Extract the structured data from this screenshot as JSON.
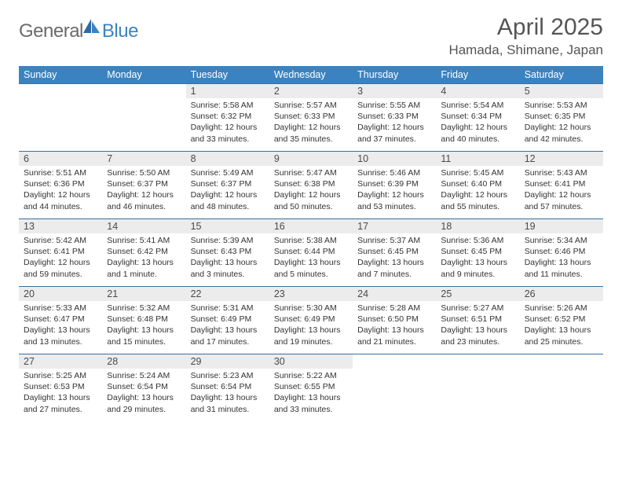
{
  "logo": {
    "word1": "General",
    "word2": "Blue"
  },
  "title": "April 2025",
  "location": "Hamada, Shimane, Japan",
  "colors": {
    "header_bg": "#3b83c0",
    "header_text": "#ffffff",
    "daynum_bg": "#ececec",
    "row_border": "#3b6f9e",
    "logo_gray": "#6a6a6a",
    "logo_blue": "#3b83c0"
  },
  "weekdays": [
    "Sunday",
    "Monday",
    "Tuesday",
    "Wednesday",
    "Thursday",
    "Friday",
    "Saturday"
  ],
  "weeks": [
    [
      {
        "n": "",
        "sr": "",
        "ss": "",
        "dl1": "",
        "dl2": ""
      },
      {
        "n": "",
        "sr": "",
        "ss": "",
        "dl1": "",
        "dl2": ""
      },
      {
        "n": "1",
        "sr": "Sunrise: 5:58 AM",
        "ss": "Sunset: 6:32 PM",
        "dl1": "Daylight: 12 hours",
        "dl2": "and 33 minutes."
      },
      {
        "n": "2",
        "sr": "Sunrise: 5:57 AM",
        "ss": "Sunset: 6:33 PM",
        "dl1": "Daylight: 12 hours",
        "dl2": "and 35 minutes."
      },
      {
        "n": "3",
        "sr": "Sunrise: 5:55 AM",
        "ss": "Sunset: 6:33 PM",
        "dl1": "Daylight: 12 hours",
        "dl2": "and 37 minutes."
      },
      {
        "n": "4",
        "sr": "Sunrise: 5:54 AM",
        "ss": "Sunset: 6:34 PM",
        "dl1": "Daylight: 12 hours",
        "dl2": "and 40 minutes."
      },
      {
        "n": "5",
        "sr": "Sunrise: 5:53 AM",
        "ss": "Sunset: 6:35 PM",
        "dl1": "Daylight: 12 hours",
        "dl2": "and 42 minutes."
      }
    ],
    [
      {
        "n": "6",
        "sr": "Sunrise: 5:51 AM",
        "ss": "Sunset: 6:36 PM",
        "dl1": "Daylight: 12 hours",
        "dl2": "and 44 minutes."
      },
      {
        "n": "7",
        "sr": "Sunrise: 5:50 AM",
        "ss": "Sunset: 6:37 PM",
        "dl1": "Daylight: 12 hours",
        "dl2": "and 46 minutes."
      },
      {
        "n": "8",
        "sr": "Sunrise: 5:49 AM",
        "ss": "Sunset: 6:37 PM",
        "dl1": "Daylight: 12 hours",
        "dl2": "and 48 minutes."
      },
      {
        "n": "9",
        "sr": "Sunrise: 5:47 AM",
        "ss": "Sunset: 6:38 PM",
        "dl1": "Daylight: 12 hours",
        "dl2": "and 50 minutes."
      },
      {
        "n": "10",
        "sr": "Sunrise: 5:46 AM",
        "ss": "Sunset: 6:39 PM",
        "dl1": "Daylight: 12 hours",
        "dl2": "and 53 minutes."
      },
      {
        "n": "11",
        "sr": "Sunrise: 5:45 AM",
        "ss": "Sunset: 6:40 PM",
        "dl1": "Daylight: 12 hours",
        "dl2": "and 55 minutes."
      },
      {
        "n": "12",
        "sr": "Sunrise: 5:43 AM",
        "ss": "Sunset: 6:41 PM",
        "dl1": "Daylight: 12 hours",
        "dl2": "and 57 minutes."
      }
    ],
    [
      {
        "n": "13",
        "sr": "Sunrise: 5:42 AM",
        "ss": "Sunset: 6:41 PM",
        "dl1": "Daylight: 12 hours",
        "dl2": "and 59 minutes."
      },
      {
        "n": "14",
        "sr": "Sunrise: 5:41 AM",
        "ss": "Sunset: 6:42 PM",
        "dl1": "Daylight: 13 hours",
        "dl2": "and 1 minute."
      },
      {
        "n": "15",
        "sr": "Sunrise: 5:39 AM",
        "ss": "Sunset: 6:43 PM",
        "dl1": "Daylight: 13 hours",
        "dl2": "and 3 minutes."
      },
      {
        "n": "16",
        "sr": "Sunrise: 5:38 AM",
        "ss": "Sunset: 6:44 PM",
        "dl1": "Daylight: 13 hours",
        "dl2": "and 5 minutes."
      },
      {
        "n": "17",
        "sr": "Sunrise: 5:37 AM",
        "ss": "Sunset: 6:45 PM",
        "dl1": "Daylight: 13 hours",
        "dl2": "and 7 minutes."
      },
      {
        "n": "18",
        "sr": "Sunrise: 5:36 AM",
        "ss": "Sunset: 6:45 PM",
        "dl1": "Daylight: 13 hours",
        "dl2": "and 9 minutes."
      },
      {
        "n": "19",
        "sr": "Sunrise: 5:34 AM",
        "ss": "Sunset: 6:46 PM",
        "dl1": "Daylight: 13 hours",
        "dl2": "and 11 minutes."
      }
    ],
    [
      {
        "n": "20",
        "sr": "Sunrise: 5:33 AM",
        "ss": "Sunset: 6:47 PM",
        "dl1": "Daylight: 13 hours",
        "dl2": "and 13 minutes."
      },
      {
        "n": "21",
        "sr": "Sunrise: 5:32 AM",
        "ss": "Sunset: 6:48 PM",
        "dl1": "Daylight: 13 hours",
        "dl2": "and 15 minutes."
      },
      {
        "n": "22",
        "sr": "Sunrise: 5:31 AM",
        "ss": "Sunset: 6:49 PM",
        "dl1": "Daylight: 13 hours",
        "dl2": "and 17 minutes."
      },
      {
        "n": "23",
        "sr": "Sunrise: 5:30 AM",
        "ss": "Sunset: 6:49 PM",
        "dl1": "Daylight: 13 hours",
        "dl2": "and 19 minutes."
      },
      {
        "n": "24",
        "sr": "Sunrise: 5:28 AM",
        "ss": "Sunset: 6:50 PM",
        "dl1": "Daylight: 13 hours",
        "dl2": "and 21 minutes."
      },
      {
        "n": "25",
        "sr": "Sunrise: 5:27 AM",
        "ss": "Sunset: 6:51 PM",
        "dl1": "Daylight: 13 hours",
        "dl2": "and 23 minutes."
      },
      {
        "n": "26",
        "sr": "Sunrise: 5:26 AM",
        "ss": "Sunset: 6:52 PM",
        "dl1": "Daylight: 13 hours",
        "dl2": "and 25 minutes."
      }
    ],
    [
      {
        "n": "27",
        "sr": "Sunrise: 5:25 AM",
        "ss": "Sunset: 6:53 PM",
        "dl1": "Daylight: 13 hours",
        "dl2": "and 27 minutes."
      },
      {
        "n": "28",
        "sr": "Sunrise: 5:24 AM",
        "ss": "Sunset: 6:54 PM",
        "dl1": "Daylight: 13 hours",
        "dl2": "and 29 minutes."
      },
      {
        "n": "29",
        "sr": "Sunrise: 5:23 AM",
        "ss": "Sunset: 6:54 PM",
        "dl1": "Daylight: 13 hours",
        "dl2": "and 31 minutes."
      },
      {
        "n": "30",
        "sr": "Sunrise: 5:22 AM",
        "ss": "Sunset: 6:55 PM",
        "dl1": "Daylight: 13 hours",
        "dl2": "and 33 minutes."
      },
      {
        "n": "",
        "sr": "",
        "ss": "",
        "dl1": "",
        "dl2": ""
      },
      {
        "n": "",
        "sr": "",
        "ss": "",
        "dl1": "",
        "dl2": ""
      },
      {
        "n": "",
        "sr": "",
        "ss": "",
        "dl1": "",
        "dl2": ""
      }
    ]
  ]
}
